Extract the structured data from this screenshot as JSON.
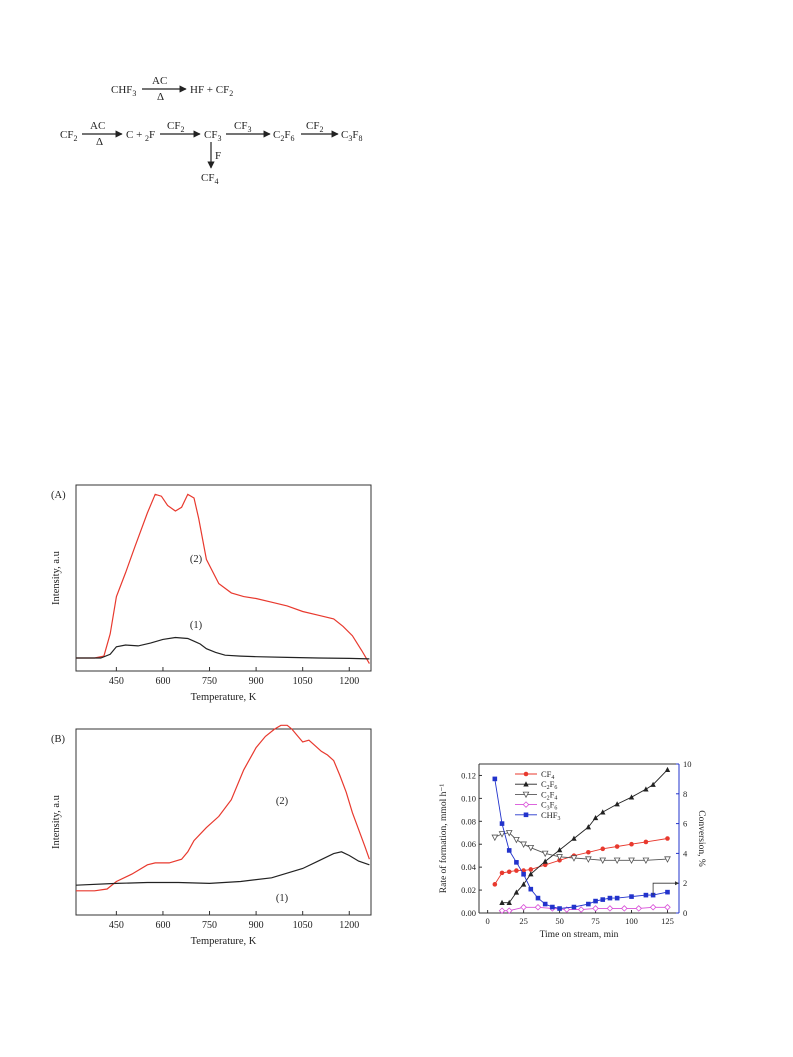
{
  "scheme": {
    "r1_reactant": "CHF3",
    "r1_above": "AC",
    "r1_below": "Δ",
    "r1_product": "HF + CF2",
    "r2_start": "CF2",
    "r2_above1": "AC",
    "r2_below1": "Δ",
    "r2_mid1": "C + 2F",
    "r2_above2": "CF2",
    "r2_mid2": "CF3",
    "r2_above3": "CF3",
    "r2_mid3": "C2F6",
    "r2_above4": "CF2",
    "r2_end": "C3F8",
    "down_label": "F",
    "down_product": "CF4"
  },
  "chart_data": [
    {
      "type": "line",
      "panel_label": "(A)",
      "xlabel": "Temperature, K",
      "ylabel": "Intensity, a.u",
      "xlim": [
        320,
        1270
      ],
      "ylim": [
        0,
        1
      ],
      "xticks": [
        450,
        600,
        750,
        900,
        1050,
        1200
      ],
      "series": [
        {
          "name": "(2)",
          "color": "#e8392e",
          "x": [
            320,
            380,
            410,
            430,
            450,
            480,
            510,
            550,
            575,
            595,
            615,
            640,
            660,
            680,
            700,
            715,
            740,
            780,
            820,
            860,
            900,
            950,
            1000,
            1050,
            1100,
            1150,
            1180,
            1210,
            1240,
            1265
          ],
          "y": [
            0.07,
            0.07,
            0.08,
            0.2,
            0.4,
            0.53,
            0.67,
            0.85,
            0.95,
            0.94,
            0.89,
            0.86,
            0.88,
            0.95,
            0.93,
            0.82,
            0.6,
            0.47,
            0.42,
            0.4,
            0.39,
            0.37,
            0.35,
            0.32,
            0.3,
            0.28,
            0.24,
            0.19,
            0.11,
            0.04
          ]
        },
        {
          "name": "(1)",
          "color": "#222222",
          "x": [
            320,
            400,
            430,
            450,
            480,
            520,
            560,
            600,
            640,
            680,
            700,
            720,
            740,
            770,
            800,
            850,
            900,
            1000,
            1100,
            1200,
            1265
          ],
          "y": [
            0.07,
            0.07,
            0.09,
            0.13,
            0.14,
            0.135,
            0.15,
            0.17,
            0.18,
            0.175,
            0.16,
            0.145,
            0.12,
            0.1,
            0.085,
            0.08,
            0.077,
            0.073,
            0.07,
            0.068,
            0.065
          ]
        }
      ],
      "annotations": [
        "(2)",
        "(1)"
      ]
    },
    {
      "type": "line",
      "panel_label": "(B)",
      "xlabel": "Temperature, K",
      "ylabel": "Intensity, a.u",
      "xlim": [
        320,
        1270
      ],
      "ylim": [
        0,
        1
      ],
      "xticks": [
        450,
        600,
        750,
        900,
        1050,
        1200
      ],
      "series": [
        {
          "name": "(2)",
          "color": "#e8392e",
          "x": [
            320,
            380,
            420,
            450,
            500,
            550,
            575,
            620,
            660,
            680,
            700,
            740,
            780,
            820,
            860,
            900,
            930,
            960,
            980,
            1000,
            1015,
            1030,
            1050,
            1070,
            1090,
            1110,
            1130,
            1150,
            1170,
            1190,
            1210,
            1230,
            1250,
            1265
          ],
          "y": [
            0.13,
            0.13,
            0.14,
            0.18,
            0.22,
            0.27,
            0.28,
            0.28,
            0.3,
            0.34,
            0.4,
            0.47,
            0.53,
            0.62,
            0.78,
            0.9,
            0.96,
            1.0,
            1.02,
            1.02,
            1.0,
            0.97,
            0.93,
            0.94,
            0.91,
            0.88,
            0.86,
            0.83,
            0.75,
            0.66,
            0.55,
            0.46,
            0.37,
            0.3
          ]
        },
        {
          "name": "(1)",
          "color": "#222222",
          "x": [
            320,
            450,
            550,
            650,
            750,
            850,
            950,
            1050,
            1100,
            1150,
            1175,
            1200,
            1230,
            1265
          ],
          "y": [
            0.16,
            0.17,
            0.175,
            0.175,
            0.17,
            0.18,
            0.2,
            0.25,
            0.29,
            0.33,
            0.34,
            0.32,
            0.29,
            0.27
          ]
        }
      ],
      "annotations": [
        "(2)",
        "(1)"
      ]
    },
    {
      "type": "line",
      "xlabel": "Time on stream, min",
      "ylabel": "Rate of formation, mmol h⁻¹",
      "y2label": "Conversion, %",
      "xlim": [
        -6,
        133
      ],
      "ylim": [
        0,
        0.13
      ],
      "y2lim": [
        0,
        10
      ],
      "xticks": [
        0,
        25,
        50,
        75,
        100,
        125
      ],
      "yticks": [
        0.0,
        0.02,
        0.04,
        0.06,
        0.08,
        0.1,
        0.12
      ],
      "y2ticks": [
        0,
        2,
        4,
        6,
        8,
        10
      ],
      "legend": "top-left",
      "series": [
        {
          "name": "CF4",
          "color": "#e8392e",
          "marker": "circle",
          "axis": "left",
          "x": [
            5,
            10,
            15,
            20,
            25,
            30,
            40,
            50,
            60,
            70,
            80,
            90,
            100,
            110,
            125
          ],
          "y": [
            0.025,
            0.035,
            0.036,
            0.037,
            0.037,
            0.038,
            0.042,
            0.046,
            0.05,
            0.053,
            0.056,
            0.058,
            0.06,
            0.062,
            0.065
          ]
        },
        {
          "name": "C2F6",
          "color": "#222222",
          "marker": "triangle-up",
          "axis": "left",
          "x": [
            10,
            15,
            20,
            25,
            30,
            40,
            50,
            60,
            70,
            75,
            80,
            90,
            100,
            110,
            115,
            125
          ],
          "y": [
            0.009,
            0.009,
            0.018,
            0.025,
            0.034,
            0.045,
            0.055,
            0.065,
            0.075,
            0.083,
            0.088,
            0.095,
            0.101,
            0.108,
            0.112,
            0.125
          ]
        },
        {
          "name": "C2F4",
          "color": "#555555",
          "marker": "triangle-down-open",
          "axis": "left",
          "x": [
            5,
            10,
            15,
            20,
            25,
            30,
            40,
            50,
            60,
            70,
            80,
            90,
            100,
            110,
            125
          ],
          "y": [
            0.066,
            0.069,
            0.07,
            0.064,
            0.06,
            0.057,
            0.052,
            0.049,
            0.048,
            0.047,
            0.046,
            0.046,
            0.046,
            0.046,
            0.047
          ]
        },
        {
          "name": "C3F6",
          "color": "#d84fd8",
          "marker": "diamond-open",
          "axis": "left",
          "x": [
            10,
            15,
            25,
            35,
            45,
            55,
            65,
            75,
            85,
            95,
            105,
            115,
            125
          ],
          "y": [
            0.002,
            0.002,
            0.005,
            0.005,
            0.004,
            0.003,
            0.003,
            0.004,
            0.004,
            0.004,
            0.004,
            0.005,
            0.005
          ]
        },
        {
          "name": "CHF3",
          "color": "#2233cc",
          "marker": "square",
          "axis": "right",
          "x": [
            5,
            10,
            15,
            20,
            25,
            30,
            35,
            40,
            45,
            50,
            60,
            70,
            75,
            80,
            85,
            90,
            100,
            110,
            115,
            125
          ],
          "y": [
            9.0,
            6.0,
            4.2,
            3.4,
            2.6,
            1.6,
            1.0,
            0.6,
            0.4,
            0.3,
            0.4,
            0.6,
            0.8,
            0.9,
            1.0,
            1.0,
            1.1,
            1.2,
            1.2,
            1.4
          ]
        }
      ]
    }
  ]
}
